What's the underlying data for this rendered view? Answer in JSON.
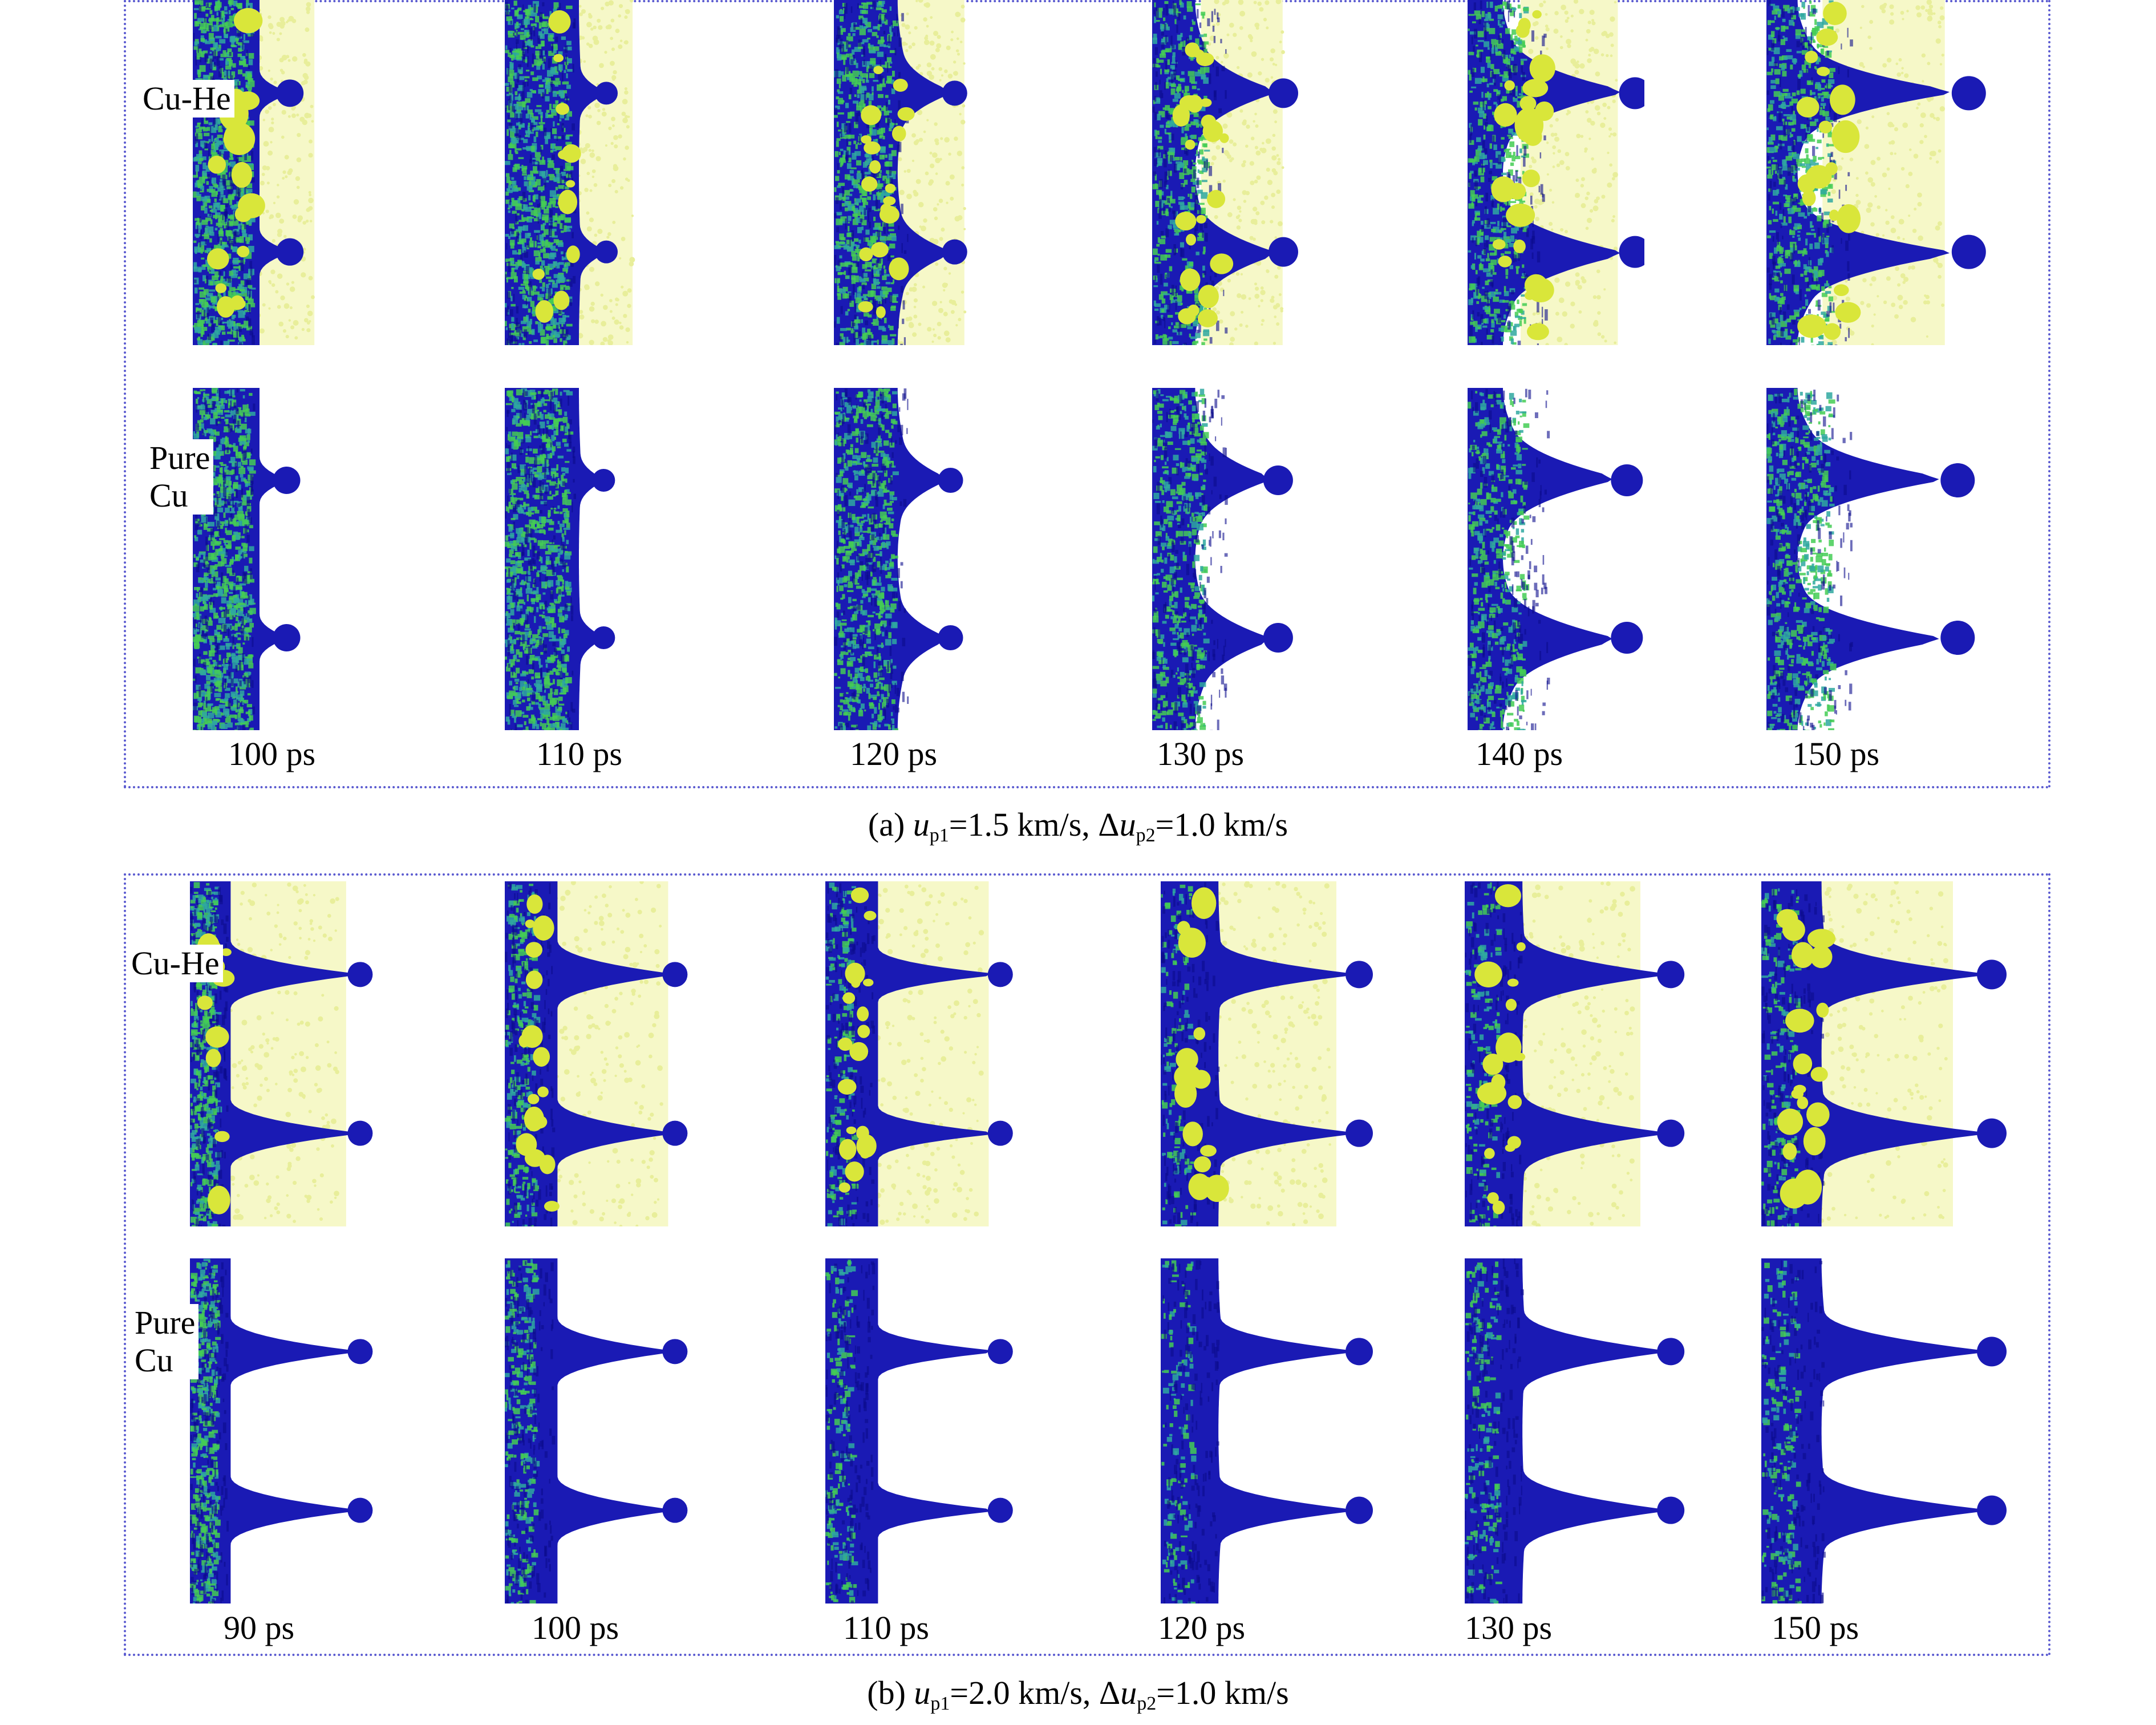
{
  "figure_a": {
    "row_labels": {
      "cuhe": "Cu-He",
      "pure_line1": "Pure",
      "pure_line2": "Cu"
    },
    "times": [
      "100 ps",
      "110 ps",
      "120 ps",
      "130 ps",
      "140 ps",
      "150 ps"
    ],
    "caption": {
      "prefix": "(a) ",
      "var1": "u",
      "sub1": "p1",
      "mid": "=1.5 km/s, Δ",
      "var2": "u",
      "sub2": "p2",
      "suffix": "=1.0 km/s"
    }
  },
  "figure_b": {
    "row_labels": {
      "cuhe": "Cu-He",
      "pure_line1": "Pure",
      "pure_line2": "Cu"
    },
    "times": [
      "90 ps",
      "100 ps",
      "110 ps",
      "120 ps",
      "130 ps",
      "150 ps"
    ],
    "caption": {
      "prefix": "(b) ",
      "var1": "u",
      "sub1": "p1",
      "mid": "=2.0 km/s, Δ",
      "var2": "u",
      "sub2": "p2",
      "suffix": "=1.0 km/s"
    }
  },
  "colors": {
    "copper_blue": "#1a1ab4",
    "copper_dark": "#0c0c8c",
    "disorder_green": "#44cc55",
    "helium_yellow": "#d9e63a",
    "helium_haze": "#f6f8c8",
    "frame_dotted": "#5a5ad0"
  }
}
